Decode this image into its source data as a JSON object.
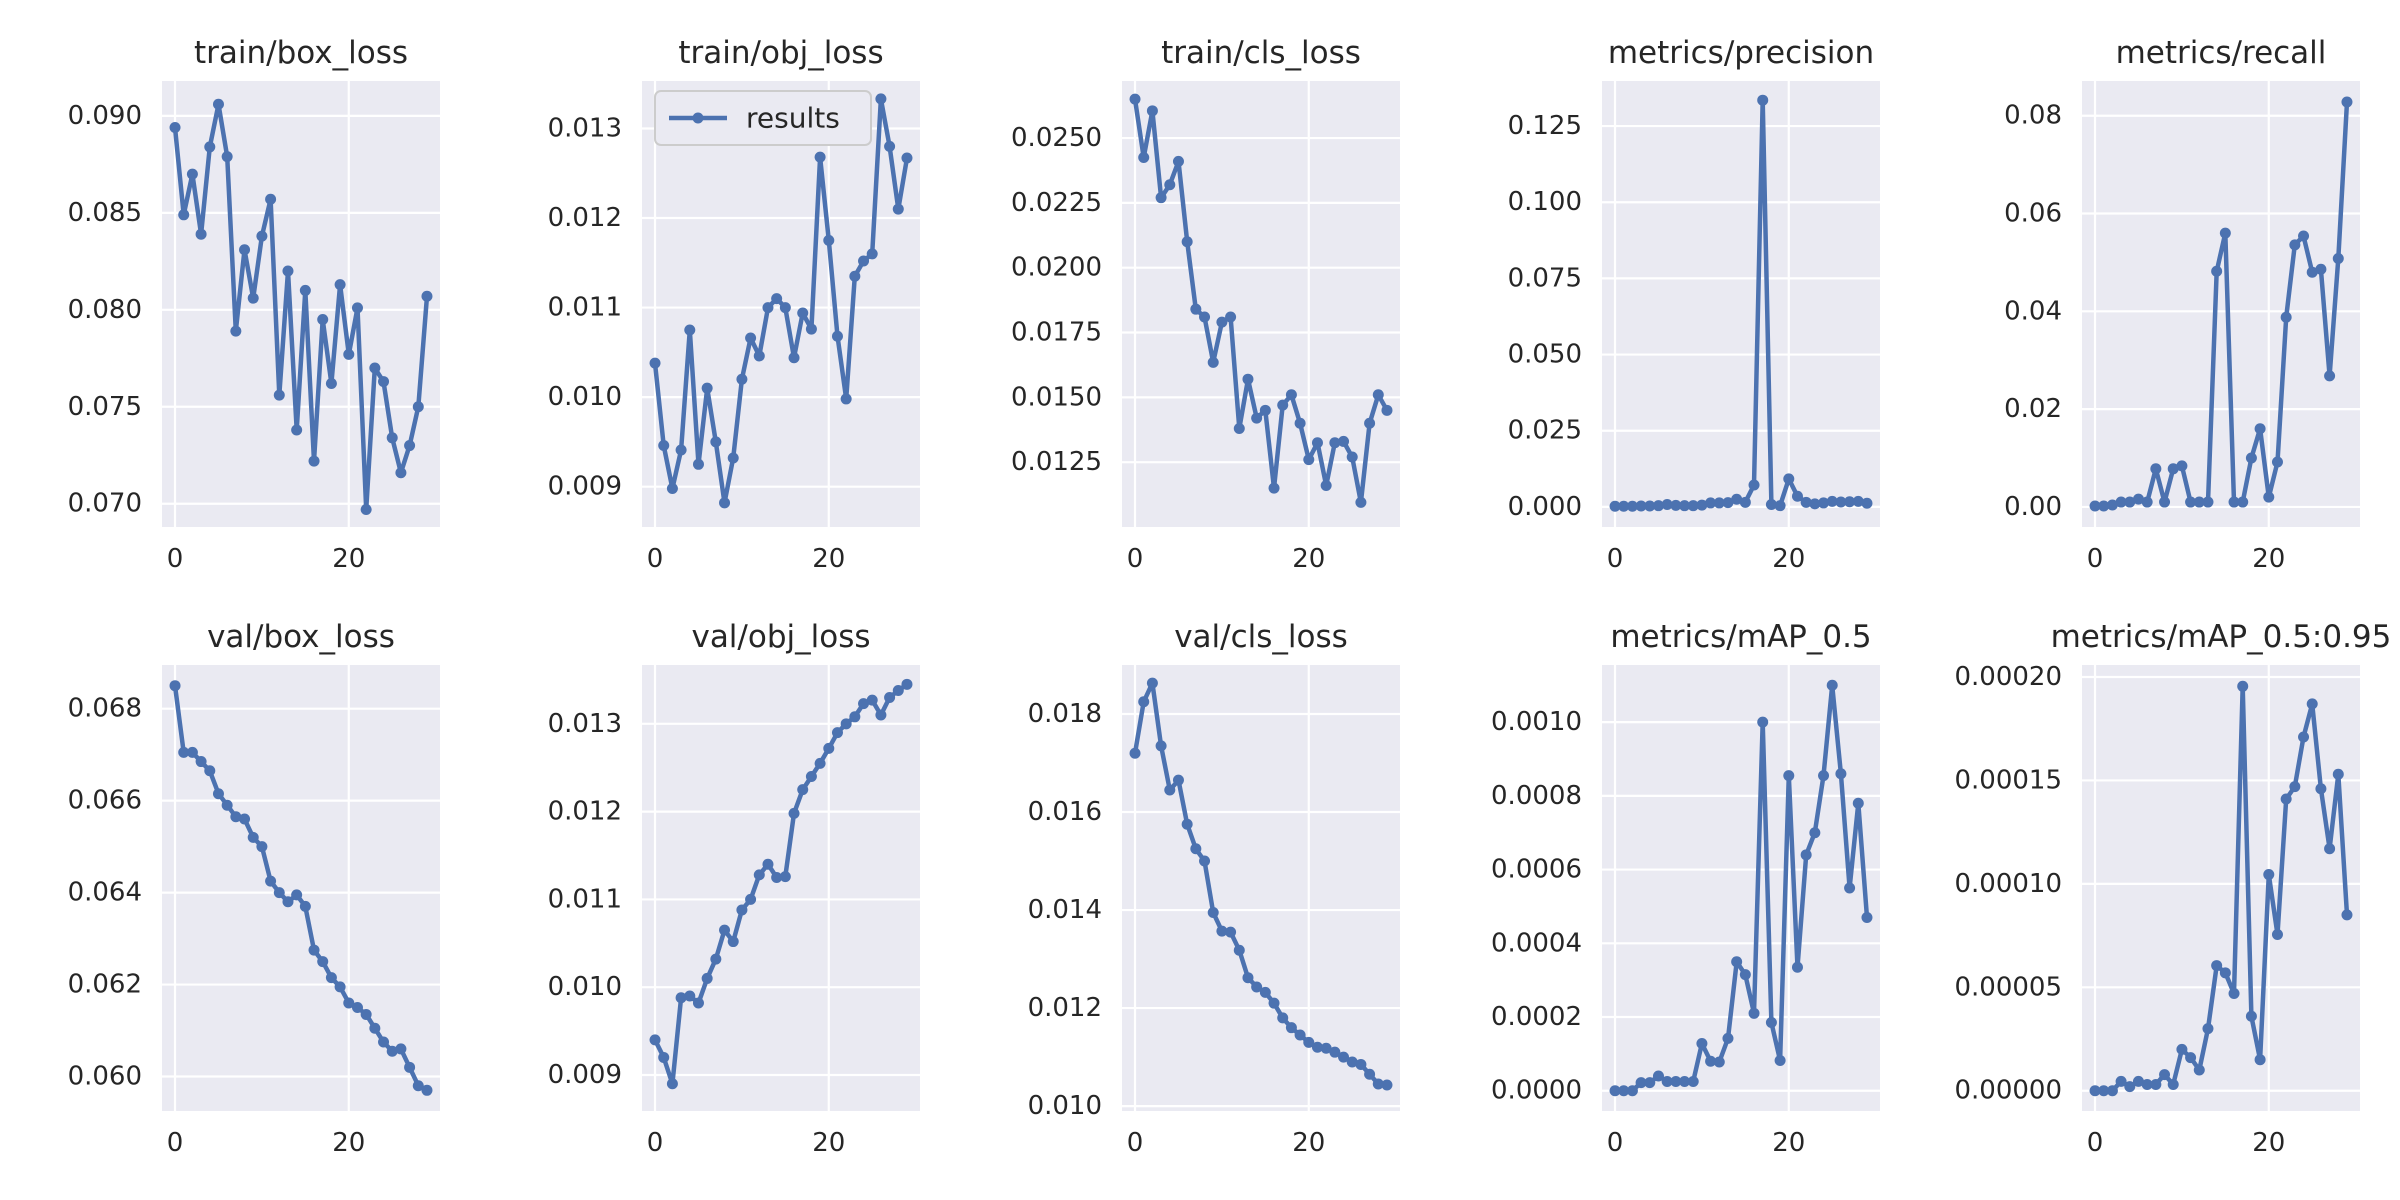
{
  "figure": {
    "background": "#ffffff",
    "plot_background": "#eaeaf2",
    "grid_color": "#ffffff",
    "series_color": "#4c72b0"
  },
  "legend": {
    "label": "results",
    "panel": 1,
    "placement": "upper-left"
  },
  "chart_data": [
    {
      "type": "line",
      "title": "train/box_loss",
      "xlim": [
        -1.5,
        30.5
      ],
      "ylim": [
        0.0688,
        0.0918
      ],
      "xticks": [
        0,
        20
      ],
      "yticks": [
        0.07,
        0.075,
        0.08,
        0.085,
        0.09
      ],
      "ytick_labels": [
        "0.070",
        "0.075",
        "0.080",
        "0.085",
        "0.090"
      ],
      "series": [
        {
          "name": "results",
          "x": [
            0,
            1,
            2,
            3,
            4,
            5,
            6,
            7,
            8,
            9,
            10,
            11,
            12,
            13,
            14,
            15,
            16,
            17,
            18,
            19,
            20,
            21,
            22,
            23,
            24,
            25,
            26,
            27,
            28,
            29
          ],
          "y": [
            0.0894,
            0.0849,
            0.087,
            0.0839,
            0.0884,
            0.0906,
            0.0879,
            0.0789,
            0.0831,
            0.0806,
            0.0838,
            0.0857,
            0.0756,
            0.082,
            0.0738,
            0.081,
            0.0722,
            0.0795,
            0.0762,
            0.0813,
            0.0777,
            0.0801,
            0.0697,
            0.077,
            0.0763,
            0.0734,
            0.0716,
            0.073,
            0.075,
            0.0807
          ]
        }
      ]
    },
    {
      "type": "line",
      "title": "train/obj_loss",
      "xlim": [
        -1.5,
        30.5
      ],
      "ylim": [
        0.00855,
        0.01353
      ],
      "xticks": [
        0,
        20
      ],
      "yticks": [
        0.009,
        0.01,
        0.011,
        0.012,
        0.013
      ],
      "ytick_labels": [
        "0.009",
        "0.010",
        "0.011",
        "0.012",
        "0.013"
      ],
      "series": [
        {
          "name": "results",
          "x": [
            0,
            1,
            2,
            3,
            4,
            5,
            6,
            7,
            8,
            9,
            10,
            11,
            12,
            13,
            14,
            15,
            16,
            17,
            18,
            19,
            20,
            21,
            22,
            23,
            24,
            25,
            26,
            27,
            28,
            29
          ],
          "y": [
            0.01038,
            0.00946,
            0.00898,
            0.00941,
            0.01075,
            0.00925,
            0.0101,
            0.0095,
            0.00882,
            0.00932,
            0.0102,
            0.01066,
            0.01046,
            0.011,
            0.0111,
            0.011,
            0.01044,
            0.01094,
            0.01076,
            0.01268,
            0.01175,
            0.01068,
            0.00998,
            0.01135,
            0.01152,
            0.0116,
            0.01333,
            0.0128,
            0.0121,
            0.01267
          ]
        }
      ]
    },
    {
      "type": "line",
      "title": "train/cls_loss",
      "xlim": [
        -1.5,
        30.5
      ],
      "ylim": [
        0.01,
        0.0272
      ],
      "xticks": [
        0,
        20
      ],
      "yticks": [
        0.0125,
        0.015,
        0.0175,
        0.02,
        0.0225,
        0.025
      ],
      "ytick_labels": [
        "0.0125",
        "0.0150",
        "0.0175",
        "0.0200",
        "0.0225",
        "0.0250"
      ],
      "series": [
        {
          "name": "results",
          "x": [
            0,
            1,
            2,
            3,
            4,
            5,
            6,
            7,
            8,
            9,
            10,
            11,
            12,
            13,
            14,
            15,
            16,
            17,
            18,
            19,
            20,
            21,
            22,
            23,
            24,
            25,
            26,
            27,
            28,
            29
          ],
          "y": [
            0.0265,
            0.02425,
            0.02605,
            0.0227,
            0.0232,
            0.0241,
            0.021,
            0.0184,
            0.0181,
            0.01635,
            0.0179,
            0.0181,
            0.0138,
            0.0157,
            0.0142,
            0.0145,
            0.0115,
            0.0147,
            0.0151,
            0.014,
            0.0126,
            0.01325,
            0.0116,
            0.01325,
            0.0133,
            0.0127,
            0.01095,
            0.014,
            0.0151,
            0.0145
          ]
        }
      ]
    },
    {
      "type": "line",
      "title": "metrics/precision",
      "xlim": [
        -1.5,
        30.5
      ],
      "ylim": [
        -0.0066,
        0.1398
      ],
      "xticks": [
        0,
        20
      ],
      "yticks": [
        0.0,
        0.025,
        0.05,
        0.075,
        0.1,
        0.125
      ],
      "ytick_labels": [
        "0.000",
        "0.025",
        "0.050",
        "0.075",
        "0.100",
        "0.125"
      ],
      "series": [
        {
          "name": "results",
          "x": [
            0,
            1,
            2,
            3,
            4,
            5,
            6,
            7,
            8,
            9,
            10,
            11,
            12,
            13,
            14,
            15,
            16,
            17,
            18,
            19,
            20,
            21,
            22,
            23,
            24,
            25,
            26,
            27,
            28,
            29
          ],
          "y": [
            0.0002,
            0.0002,
            0.0002,
            0.0003,
            0.0003,
            0.0004,
            0.0008,
            0.0005,
            0.0004,
            0.0004,
            0.0006,
            0.0013,
            0.0013,
            0.0014,
            0.0025,
            0.0015,
            0.0072,
            0.1335,
            0.0008,
            0.0004,
            0.0092,
            0.0035,
            0.0015,
            0.001,
            0.0013,
            0.0018,
            0.0016,
            0.0017,
            0.0018,
            0.0012
          ]
        }
      ]
    },
    {
      "type": "line",
      "title": "metrics/recall",
      "xlim": [
        -1.5,
        30.5
      ],
      "ylim": [
        -0.0041,
        0.0871
      ],
      "xticks": [
        0,
        20
      ],
      "yticks": [
        0.0,
        0.02,
        0.04,
        0.06,
        0.08
      ],
      "ytick_labels": [
        "0.00",
        "0.02",
        "0.04",
        "0.06",
        "0.08"
      ],
      "series": [
        {
          "name": "results",
          "x": [
            0,
            1,
            2,
            3,
            4,
            5,
            6,
            7,
            8,
            9,
            10,
            11,
            12,
            13,
            14,
            15,
            16,
            17,
            18,
            19,
            20,
            21,
            22,
            23,
            24,
            25,
            26,
            27,
            28,
            29
          ],
          "y": [
            0.0002,
            0.0002,
            0.0004,
            0.001,
            0.001,
            0.0016,
            0.001,
            0.0078,
            0.001,
            0.0078,
            0.0084,
            0.001,
            0.001,
            0.001,
            0.0482,
            0.056,
            0.001,
            0.001,
            0.01,
            0.016,
            0.002,
            0.0092,
            0.0388,
            0.0536,
            0.0554,
            0.048,
            0.0486,
            0.0268,
            0.0508,
            0.0828
          ]
        }
      ]
    },
    {
      "type": "line",
      "title": "val/box_loss",
      "xlim": [
        -1.5,
        30.5
      ],
      "ylim": [
        0.05925,
        0.06895
      ],
      "xticks": [
        0,
        20
      ],
      "yticks": [
        0.06,
        0.062,
        0.064,
        0.066,
        0.068
      ],
      "ytick_labels": [
        "0.060",
        "0.062",
        "0.064",
        "0.066",
        "0.068"
      ],
      "series": [
        {
          "name": "results",
          "x": [
            0,
            1,
            2,
            3,
            4,
            5,
            6,
            7,
            8,
            9,
            10,
            11,
            12,
            13,
            14,
            15,
            16,
            17,
            18,
            19,
            20,
            21,
            22,
            23,
            24,
            25,
            26,
            27,
            28,
            29
          ],
          "y": [
            0.0685,
            0.06705,
            0.06705,
            0.06685,
            0.06665,
            0.06615,
            0.0659,
            0.06565,
            0.0656,
            0.0652,
            0.065,
            0.06425,
            0.064,
            0.0638,
            0.06395,
            0.0637,
            0.06275,
            0.0625,
            0.06215,
            0.06195,
            0.0616,
            0.0615,
            0.06135,
            0.06105,
            0.06075,
            0.06055,
            0.0606,
            0.0602,
            0.0598,
            0.0597
          ]
        }
      ]
    },
    {
      "type": "line",
      "title": "val/obj_loss",
      "xlim": [
        -1.5,
        30.5
      ],
      "ylim": [
        0.00859,
        0.01367
      ],
      "xticks": [
        0,
        20
      ],
      "yticks": [
        0.009,
        0.01,
        0.011,
        0.012,
        0.013
      ],
      "ytick_labels": [
        "0.009",
        "0.010",
        "0.011",
        "0.012",
        "0.013"
      ],
      "series": [
        {
          "name": "results",
          "x": [
            0,
            1,
            2,
            3,
            4,
            5,
            6,
            7,
            8,
            9,
            10,
            11,
            12,
            13,
            14,
            15,
            16,
            17,
            18,
            19,
            20,
            21,
            22,
            23,
            24,
            25,
            26,
            27,
            28,
            29
          ],
          "y": [
            0.0094,
            0.0092,
            0.0089,
            0.00988,
            0.0099,
            0.00982,
            0.0101,
            0.01032,
            0.01065,
            0.01052,
            0.01088,
            0.011,
            0.01128,
            0.0114,
            0.01125,
            0.01126,
            0.01198,
            0.01225,
            0.0124,
            0.01255,
            0.01272,
            0.0129,
            0.013,
            0.01308,
            0.01323,
            0.01327,
            0.0131,
            0.0133,
            0.01338,
            0.01345
          ]
        }
      ]
    },
    {
      "type": "line",
      "title": "val/cls_loss",
      "xlim": [
        -1.5,
        30.5
      ],
      "ylim": [
        0.0099,
        0.019
      ],
      "xticks": [
        0,
        20
      ],
      "yticks": [
        0.01,
        0.012,
        0.014,
        0.016,
        0.018
      ],
      "ytick_labels": [
        "0.010",
        "0.012",
        "0.014",
        "0.016",
        "0.018"
      ],
      "series": [
        {
          "name": "results",
          "x": [
            0,
            1,
            2,
            3,
            4,
            5,
            6,
            7,
            8,
            9,
            10,
            11,
            12,
            13,
            14,
            15,
            16,
            17,
            18,
            19,
            20,
            21,
            22,
            23,
            24,
            25,
            26,
            27,
            28,
            29
          ],
          "y": [
            0.0172,
            0.01825,
            0.01863,
            0.01735,
            0.01645,
            0.01665,
            0.01575,
            0.01525,
            0.015,
            0.01395,
            0.01357,
            0.01355,
            0.01318,
            0.01262,
            0.01243,
            0.01232,
            0.0121,
            0.0118,
            0.0116,
            0.01145,
            0.0113,
            0.0112,
            0.01118,
            0.0111,
            0.011,
            0.0109,
            0.01085,
            0.01065,
            0.01045,
            0.01043
          ]
        }
      ]
    },
    {
      "type": "line",
      "title": "metrics/mAP_0.5",
      "xlim": [
        -1.5,
        30.5
      ],
      "ylim": [
        -5.5e-05,
        0.001155
      ],
      "xticks": [
        0,
        20
      ],
      "yticks": [
        0.0,
        0.0002,
        0.0004,
        0.0006,
        0.0008,
        0.001
      ],
      "ytick_labels": [
        "0.0000",
        "0.0002",
        "0.0004",
        "0.0006",
        "0.0008",
        "0.0010"
      ],
      "series": [
        {
          "name": "results",
          "x": [
            0,
            1,
            2,
            3,
            4,
            5,
            6,
            7,
            8,
            9,
            10,
            11,
            12,
            13,
            14,
            15,
            16,
            17,
            18,
            19,
            20,
            21,
            22,
            23,
            24,
            25,
            26,
            27,
            28,
            29
          ],
          "y": [
            0.0,
            0.0,
            0.0,
            2.2e-05,
            2.2e-05,
            4e-05,
            2.5e-05,
            2.5e-05,
            2.5e-05,
            2.5e-05,
            0.000128,
            8e-05,
            7.8e-05,
            0.000142,
            0.00035,
            0.000315,
            0.00021,
            0.001,
            0.000185,
            8.2e-05,
            0.000855,
            0.000335,
            0.00064,
            0.0007,
            0.000855,
            0.0011,
            0.00086,
            0.00055,
            0.00078,
            0.00047
          ]
        }
      ]
    },
    {
      "type": "line",
      "title": "metrics/mAP_0.5:0.95",
      "xlim": [
        -1.5,
        30.5
      ],
      "ylim": [
        -9.8e-06,
        0.0002058
      ],
      "xticks": [
        0,
        20
      ],
      "yticks": [
        0.0,
        5e-05,
        0.0001,
        0.00015,
        0.0002
      ],
      "ytick_labels": [
        "0.00000",
        "0.00005",
        "0.00010",
        "0.00015",
        "0.00020"
      ],
      "series": [
        {
          "name": "results",
          "x": [
            0,
            1,
            2,
            3,
            4,
            5,
            6,
            7,
            8,
            9,
            10,
            11,
            12,
            13,
            14,
            15,
            16,
            17,
            18,
            19,
            20,
            21,
            22,
            23,
            24,
            25,
            26,
            27,
            28,
            29
          ],
          "y": [
            0.0,
            0.0,
            0.0,
            4.5e-06,
            2e-06,
            4.5e-06,
            3e-06,
            3e-06,
            7.8e-06,
            3e-06,
            2e-05,
            1.6e-05,
            1e-05,
            3e-05,
            6.05e-05,
            5.7e-05,
            4.7e-05,
            0.0001955,
            3.6e-05,
            1.5e-05,
            0.0001045,
            7.55e-05,
            0.000141,
            0.000147,
            0.000171,
            0.000187,
            0.000146,
            0.000117,
            0.000153,
            8.5e-05
          ]
        }
      ]
    }
  ]
}
